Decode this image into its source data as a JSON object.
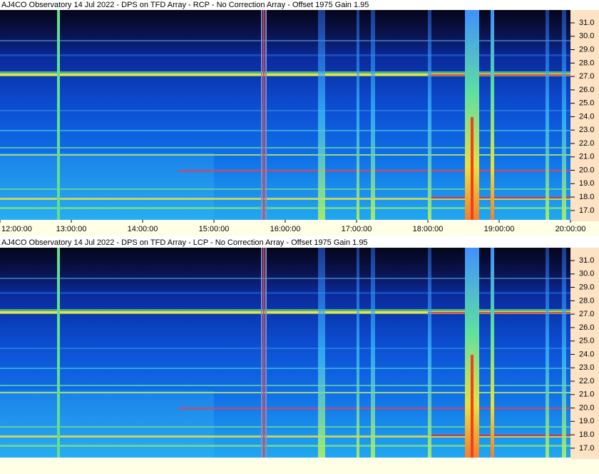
{
  "chart_data": [
    {
      "type": "spectrogram",
      "title": "AJ4CO Observatory 14 Jul 2022 - DPS on TFD Array  - RCP  -  No Correction Array  -  Offset 1975  Gain 1.95",
      "ylim": [
        16.3,
        31.96
      ],
      "yticks": [
        {
          "value": 17,
          "label": "17.0"
        },
        {
          "value": 18,
          "label": "18.0"
        },
        {
          "value": 19,
          "label": "19.0"
        },
        {
          "value": 20,
          "label": "20.0"
        },
        {
          "value": 21,
          "label": "21.0"
        },
        {
          "value": 22,
          "label": "22.0"
        },
        {
          "value": 23,
          "label": "23.0"
        },
        {
          "value": 24,
          "label": "24.0"
        },
        {
          "value": 25,
          "label": "25.0"
        },
        {
          "value": 26,
          "label": "26.0"
        },
        {
          "value": 27,
          "label": "27.0"
        },
        {
          "value": 28,
          "label": "28.0"
        },
        {
          "value": 29,
          "label": "29.0"
        },
        {
          "value": 30,
          "label": "30.0"
        },
        {
          "value": 31,
          "label": "31.0"
        }
      ],
      "xlim": [
        12,
        20
      ],
      "xticks": [
        {
          "value": 12,
          "label": "12:00:00"
        },
        {
          "value": 13,
          "label": "13:00:00"
        },
        {
          "value": 14,
          "label": "14:00:00"
        },
        {
          "value": 15,
          "label": "15:00:00"
        },
        {
          "value": 16,
          "label": "16:00:00"
        },
        {
          "value": 17,
          "label": "17:00:00"
        },
        {
          "value": 18,
          "label": "18:00:00"
        },
        {
          "value": 19,
          "label": "19:00:00"
        },
        {
          "value": 20,
          "label": "20:00:00"
        }
      ]
    },
    {
      "type": "spectrogram",
      "title": "AJ4CO Observatory 14 Jul 2022 - DPS on TFD Array  - LCP  -  No Correction Array  -  Offset 1975  Gain 1.95",
      "ylim": [
        16.3,
        31.96
      ],
      "yticks": [
        {
          "value": 17,
          "label": "17.0"
        },
        {
          "value": 18,
          "label": "18.0"
        },
        {
          "value": 19,
          "label": "19.0"
        },
        {
          "value": 20,
          "label": "20.0"
        },
        {
          "value": 21,
          "label": "21.0"
        },
        {
          "value": 22,
          "label": "22.0"
        },
        {
          "value": 23,
          "label": "23.0"
        },
        {
          "value": 24,
          "label": "24.0"
        },
        {
          "value": 25,
          "label": "25.0"
        },
        {
          "value": 26,
          "label": "26.0"
        },
        {
          "value": 27,
          "label": "27.0"
        },
        {
          "value": 28,
          "label": "28.0"
        },
        {
          "value": 29,
          "label": "29.0"
        },
        {
          "value": 30,
          "label": "30.0"
        },
        {
          "value": 31,
          "label": "31.0"
        }
      ]
    }
  ]
}
